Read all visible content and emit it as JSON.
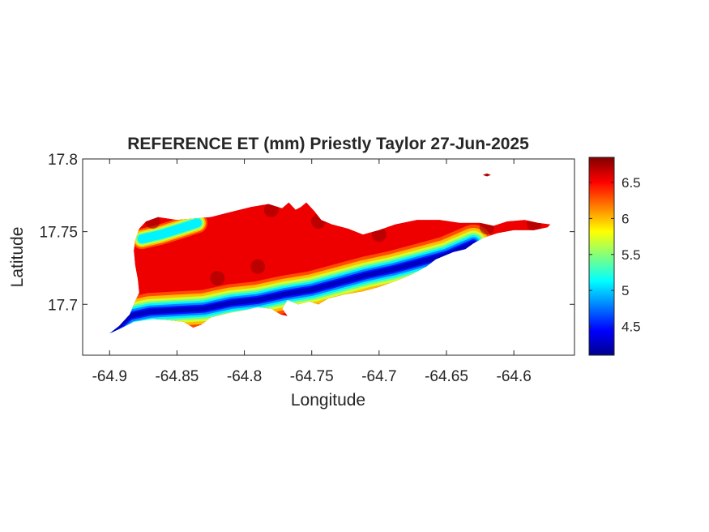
{
  "chart_data": {
    "type": "heatmap",
    "title": "REFERENCE ET (mm) Priestly Taylor 27-Jun-2025",
    "xlabel": "Longitude",
    "ylabel": "Latitude",
    "xlim": [
      -64.92,
      -64.555
    ],
    "ylim": [
      17.665,
      17.8
    ],
    "x_ticks": [
      -64.9,
      -64.85,
      -64.8,
      -64.75,
      -64.7,
      -64.65,
      -64.6
    ],
    "x_tick_labels": [
      "-64.9",
      "-64.85",
      "-64.8",
      "-64.75",
      "-64.7",
      "-64.65",
      "-64.6"
    ],
    "y_ticks": [
      17.7,
      17.75,
      17.8
    ],
    "y_tick_labels": [
      "17.7",
      "17.75",
      "17.8"
    ],
    "grid": false,
    "colormap": "jet",
    "colorbar": {
      "range": [
        4.1,
        6.85
      ],
      "ticks": [
        4.5,
        5,
        5.5,
        6,
        6.5
      ],
      "tick_labels": [
        "4.5",
        "5",
        "5.5",
        "6",
        "6.5"
      ],
      "placement": "right"
    },
    "island_outline": [
      [
        -64.9,
        17.68
      ],
      [
        -64.893,
        17.685
      ],
      [
        -64.885,
        17.693
      ],
      [
        -64.882,
        17.7
      ],
      [
        -64.878,
        17.708
      ],
      [
        -64.879,
        17.717
      ],
      [
        -64.881,
        17.727
      ],
      [
        -64.882,
        17.737
      ],
      [
        -64.881,
        17.744
      ],
      [
        -64.878,
        17.752
      ],
      [
        -64.873,
        17.757
      ],
      [
        -64.864,
        17.76
      ],
      [
        -64.85,
        17.758
      ],
      [
        -64.838,
        17.759
      ],
      [
        -64.825,
        17.76
      ],
      [
        -64.812,
        17.763
      ],
      [
        -64.795,
        17.767
      ],
      [
        -64.782,
        17.769
      ],
      [
        -64.772,
        17.766
      ],
      [
        -64.767,
        17.77
      ],
      [
        -64.762,
        17.765
      ],
      [
        -64.758,
        17.767
      ],
      [
        -64.754,
        17.77
      ],
      [
        -64.748,
        17.764
      ],
      [
        -64.743,
        17.758
      ],
      [
        -64.735,
        17.755
      ],
      [
        -64.723,
        17.752
      ],
      [
        -64.712,
        17.748
      ],
      [
        -64.7,
        17.751
      ],
      [
        -64.688,
        17.755
      ],
      [
        -64.672,
        17.758
      ],
      [
        -64.655,
        17.758
      ],
      [
        -64.64,
        17.756
      ],
      [
        -64.625,
        17.756
      ],
      [
        -64.615,
        17.754
      ],
      [
        -64.605,
        17.757
      ],
      [
        -64.592,
        17.758
      ],
      [
        -64.582,
        17.756
      ],
      [
        -64.573,
        17.755
      ],
      [
        -64.575,
        17.753
      ],
      [
        -64.585,
        17.751
      ],
      [
        -64.6,
        17.751
      ],
      [
        -64.612,
        17.749
      ],
      [
        -64.622,
        17.746
      ],
      [
        -64.63,
        17.742
      ],
      [
        -64.636,
        17.738
      ],
      [
        -64.645,
        17.736
      ],
      [
        -64.658,
        17.731
      ],
      [
        -64.665,
        17.726
      ],
      [
        -64.675,
        17.721
      ],
      [
        -64.685,
        17.717
      ],
      [
        -64.7,
        17.712
      ],
      [
        -64.712,
        17.709
      ],
      [
        -64.725,
        17.707
      ],
      [
        -64.738,
        17.704
      ],
      [
        -64.745,
        17.7
      ],
      [
        -64.752,
        17.702
      ],
      [
        -64.76,
        17.7
      ],
      [
        -64.768,
        17.703
      ],
      [
        -64.772,
        17.697
      ],
      [
        -64.768,
        17.692
      ],
      [
        -64.773,
        17.693
      ],
      [
        -64.78,
        17.697
      ],
      [
        -64.79,
        17.698
      ],
      [
        -64.8,
        17.696
      ],
      [
        -64.812,
        17.694
      ],
      [
        -64.825,
        17.691
      ],
      [
        -64.832,
        17.686
      ],
      [
        -64.838,
        17.684
      ],
      [
        -64.845,
        17.688
      ],
      [
        -64.855,
        17.689
      ],
      [
        -64.868,
        17.69
      ],
      [
        -64.882,
        17.688
      ],
      [
        -64.893,
        17.683
      ]
    ],
    "cay_outline": [
      [
        -64.623,
        17.789
      ],
      [
        -64.62,
        17.79
      ],
      [
        -64.617,
        17.789
      ],
      [
        -64.62,
        17.788
      ]
    ],
    "field_description": {
      "cool_bands": [
        {
          "path": [
            [
              -64.897,
              17.682
            ],
            [
              -64.885,
              17.692
            ],
            [
              -64.87,
              17.695
            ],
            [
              -64.85,
              17.696
            ],
            [
              -64.83,
              17.697
            ],
            [
              -64.81,
              17.701
            ],
            [
              -64.79,
              17.703
            ],
            [
              -64.77,
              17.707
            ],
            [
              -64.75,
              17.71
            ],
            [
              -64.73,
              17.715
            ],
            [
              -64.71,
              17.72
            ],
            [
              -64.69,
              17.724
            ],
            [
              -64.67,
              17.729
            ],
            [
              -64.65,
              17.734
            ],
            [
              -64.63,
              17.742
            ]
          ],
          "min_value": 4.15
        },
        {
          "path": [
            [
              -64.876,
              17.745
            ],
            [
              -64.862,
              17.748
            ],
            [
              -64.848,
              17.752
            ],
            [
              -64.835,
              17.756
            ]
          ],
          "min_value": 4.9
        }
      ],
      "max_value": 6.85
    }
  }
}
